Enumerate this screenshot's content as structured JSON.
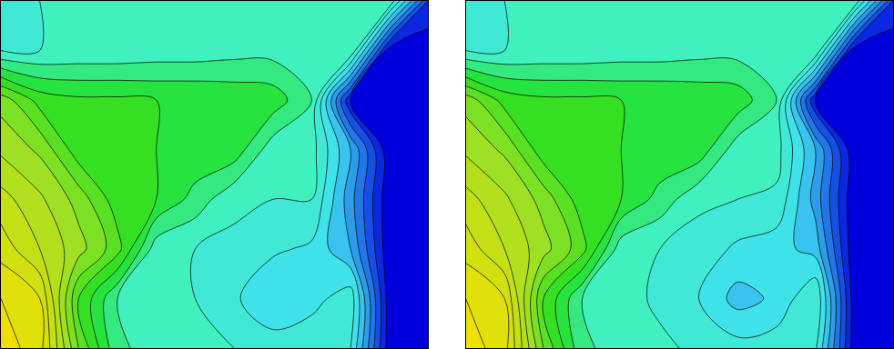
{
  "chart_data": [
    {
      "type": "contour",
      "tick_labels": false,
      "xlim": [
        0,
        11
      ],
      "ylim": [
        7,
        0
      ],
      "zlim": [
        0,
        10
      ],
      "x": [
        0,
        1,
        2,
        3,
        4,
        5,
        6,
        7,
        8,
        9,
        10,
        11
      ],
      "y": [
        0,
        1,
        2,
        3,
        4,
        5,
        6,
        7
      ],
      "z": [
        [
          4.0,
          4.0,
          4.1,
          4.1,
          4.2,
          4.2,
          4.2,
          4.3,
          4.3,
          4.3,
          4.4,
          1.0
        ],
        [
          4.0,
          4.0,
          4.1,
          4.1,
          4.2,
          4.2,
          4.3,
          4.3,
          4.4,
          4.5,
          0.2,
          0.1
        ],
        [
          6.8,
          5.8,
          5.6,
          5.6,
          5.5,
          5.5,
          5.4,
          5.3,
          4.5,
          0.5,
          0.1,
          0.1
        ],
        [
          7.4,
          6.9,
          5.7,
          5.6,
          5.5,
          5.4,
          5.3,
          4.2,
          4.2,
          2.5,
          0.1,
          0.1
        ],
        [
          8.2,
          7.6,
          6.8,
          5.7,
          5.5,
          4.8,
          4.1,
          4.0,
          4.0,
          2.2,
          0.1,
          0.1
        ],
        [
          8.8,
          8.0,
          7.2,
          6.2,
          4.2,
          4.0,
          3.9,
          3.6,
          3.4,
          2.5,
          0.1,
          0.1
        ],
        [
          9.5,
          9.0,
          6.0,
          4.5,
          4.2,
          4.0,
          3.6,
          3.0,
          3.3,
          3.8,
          0.2,
          0.1
        ],
        [
          9.8,
          9.2,
          6.5,
          4.6,
          4.3,
          4.1,
          4.0,
          3.8,
          3.9,
          3.5,
          0.2,
          0.1
        ]
      ]
    },
    {
      "type": "contour",
      "tick_labels": false,
      "xlim": [
        0,
        11
      ],
      "ylim": [
        7,
        0
      ],
      "zlim": [
        0,
        10
      ],
      "x": [
        0,
        1,
        2,
        3,
        4,
        5,
        6,
        7,
        8,
        9,
        10,
        11
      ],
      "y": [
        0,
        1,
        2,
        3,
        4,
        5,
        6,
        7
      ],
      "z": [
        [
          4.0,
          4.0,
          4.1,
          4.1,
          4.2,
          4.2,
          4.2,
          4.3,
          4.3,
          4.3,
          4.4,
          1.0
        ],
        [
          4.0,
          4.0,
          4.1,
          4.1,
          4.2,
          4.2,
          4.3,
          4.3,
          4.4,
          4.5,
          0.2,
          0.1
        ],
        [
          6.8,
          5.8,
          5.6,
          5.6,
          5.5,
          5.5,
          5.4,
          5.3,
          4.5,
          0.5,
          0.1,
          0.1
        ],
        [
          7.4,
          6.9,
          5.7,
          5.6,
          5.5,
          5.4,
          5.3,
          4.2,
          4.2,
          2.5,
          0.1,
          0.1
        ],
        [
          8.2,
          7.6,
          6.8,
          5.7,
          5.5,
          4.8,
          4.1,
          4.0,
          3.9,
          2.3,
          0.1,
          0.1
        ],
        [
          8.8,
          8.0,
          7.2,
          6.2,
          4.2,
          4.0,
          3.8,
          3.4,
          3.2,
          2.8,
          0.1,
          0.1
        ],
        [
          9.5,
          9.0,
          6.0,
          4.5,
          4.2,
          3.9,
          3.5,
          2.8,
          3.1,
          4.0,
          0.2,
          0.1
        ],
        [
          9.8,
          9.2,
          6.5,
          4.6,
          4.3,
          4.1,
          3.9,
          3.7,
          3.8,
          3.6,
          0.2,
          0.1
        ]
      ]
    }
  ]
}
